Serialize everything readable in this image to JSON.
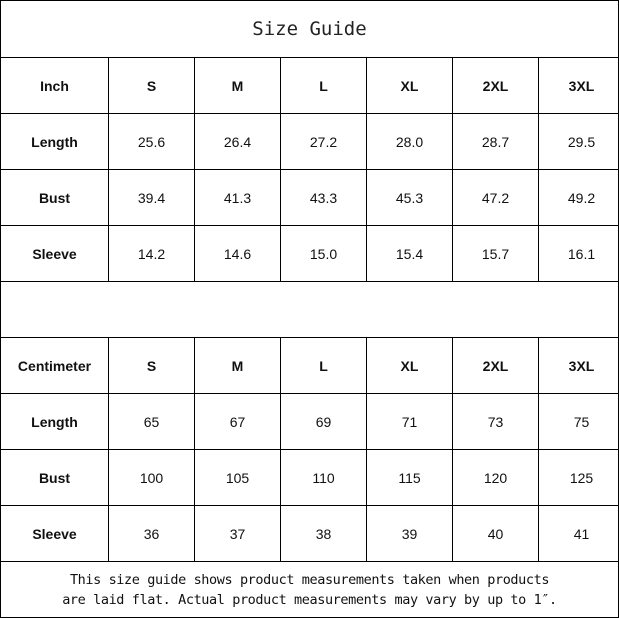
{
  "title": "Size Guide",
  "tables": [
    {
      "unit": "Inch",
      "sizes": [
        "S",
        "M",
        "L",
        "XL",
        "2XL",
        "3XL"
      ],
      "rows": [
        {
          "label": "Length",
          "values": [
            "25.6",
            "26.4",
            "27.2",
            "28.0",
            "28.7",
            "29.5"
          ]
        },
        {
          "label": "Bust",
          "values": [
            "39.4",
            "41.3",
            "43.3",
            "45.3",
            "47.2",
            "49.2"
          ]
        },
        {
          "label": "Sleeve",
          "values": [
            "14.2",
            "14.6",
            "15.0",
            "15.4",
            "15.7",
            "16.1"
          ]
        }
      ]
    },
    {
      "unit": "Centimeter",
      "sizes": [
        "S",
        "M",
        "L",
        "XL",
        "2XL",
        "3XL"
      ],
      "rows": [
        {
          "label": "Length",
          "values": [
            "65",
            "67",
            "69",
            "71",
            "73",
            "75"
          ]
        },
        {
          "label": "Bust",
          "values": [
            "100",
            "105",
            "110",
            "115",
            "120",
            "125"
          ]
        },
        {
          "label": "Sleeve",
          "values": [
            "36",
            "37",
            "38",
            "39",
            "40",
            "41"
          ]
        }
      ]
    }
  ],
  "footer": {
    "line1": "This size guide shows product measurements taken when products",
    "line2": "are laid flat. Actual product measurements may vary by up to 1″."
  }
}
